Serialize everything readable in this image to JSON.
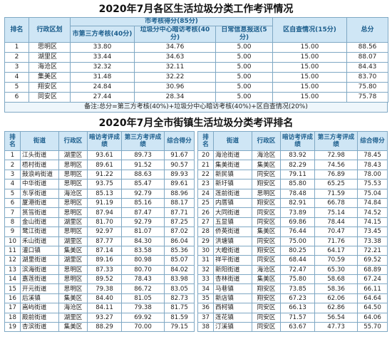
{
  "table1": {
    "title": "2020年7月各区生活垃圾分类工作考评情况",
    "header": {
      "rank": "排名",
      "district": "行政区划",
      "city_score": "市考核得分(85分)",
      "third_party": "市第三方考核(40分)",
      "covert": "垃圾分中心暗访考核(40分)",
      "daily": "日常信息报送(5分)",
      "self_check": "区自查情况(15分)",
      "total": "总分"
    },
    "rows": [
      [
        "1",
        "思明区",
        "33.80",
        "34.76",
        "5.00",
        "15.00",
        "88.56"
      ],
      [
        "2",
        "湖里区",
        "33.44",
        "34.63",
        "5.00",
        "15.00",
        "88.07"
      ],
      [
        "3",
        "海沧区",
        "32.32",
        "32.11",
        "5.00",
        "15.00",
        "84.43"
      ],
      [
        "4",
        "集美区",
        "31.48",
        "32.22",
        "5.00",
        "15.00",
        "83.70"
      ],
      [
        "5",
        "翔安区",
        "24.84",
        "30.96",
        "5.00",
        "15.00",
        "75.80"
      ],
      [
        "6",
        "同安区",
        "27.44",
        "28.34",
        "5.00",
        "15.00",
        "75.78"
      ]
    ],
    "note": "备注:总分=第三方考核(40%)+垃圾分中心暗访考核(40%)+区自查情况(20%)"
  },
  "table2": {
    "title": "2020年7月全市街镇生活垃圾分类考评排名",
    "columns": [
      "排名",
      "街道",
      "行政区",
      "暗访考评成绩",
      "第三方考评成绩",
      "综合得分"
    ],
    "left_rows": [
      [
        "1",
        "江头街道",
        "湖里区",
        "93.61",
        "89.73",
        "91.67"
      ],
      [
        "2",
        "梧村街道",
        "思明区",
        "89.61",
        "91.52",
        "90.57"
      ],
      [
        "3",
        "鼓浪屿街道",
        "思明区",
        "91.22",
        "88.63",
        "89.93"
      ],
      [
        "4",
        "中华街道",
        "思明区",
        "93.75",
        "85.47",
        "89.61"
      ],
      [
        "5",
        "东孚街道",
        "海沧区",
        "85.13",
        "92.79",
        "88.96"
      ],
      [
        "6",
        "厦港街道",
        "思明区",
        "91.19",
        "85.16",
        "88.17"
      ],
      [
        "7",
        "筼筜街道",
        "思明区",
        "87.94",
        "87.47",
        "87.71"
      ],
      [
        "8",
        "金山街道",
        "湖里区",
        "81.70",
        "92.79",
        "87.25"
      ],
      [
        "9",
        "鹭江街道",
        "思明区",
        "92.97",
        "81.07",
        "87.02"
      ],
      [
        "10",
        "禾山街道",
        "湖里区",
        "87.77",
        "84.30",
        "86.04"
      ],
      [
        "11",
        "灌口镇",
        "集美区",
        "87.14",
        "83.58",
        "85.36"
      ],
      [
        "12",
        "湖里街道",
        "湖里区",
        "89.16",
        "80.98",
        "85.07"
      ],
      [
        "13",
        "滨海街道",
        "思明区",
        "87.33",
        "80.70",
        "84.02"
      ],
      [
        "14",
        "嘉莲街道",
        "思明区",
        "89.52",
        "78.43",
        "83.98"
      ],
      [
        "15",
        "开元街道",
        "思明区",
        "79.38",
        "86.72",
        "83.05"
      ],
      [
        "16",
        "后溪镇",
        "集美区",
        "84.40",
        "81.05",
        "82.73"
      ],
      [
        "17",
        "嵩屿街道",
        "海沧区",
        "84.11",
        "79.38",
        "81.75"
      ],
      [
        "18",
        "殿前街道",
        "湖里区",
        "93.27",
        "69.92",
        "81.59"
      ],
      [
        "19",
        "杏滨街道",
        "集美区",
        "88.29",
        "70.00",
        "79.15"
      ]
    ],
    "right_rows": [
      [
        "20",
        "海沧街道",
        "海沧区",
        "83.92",
        "72.98",
        "78.45"
      ],
      [
        "21",
        "集美街道",
        "集美区",
        "82.29",
        "74.56",
        "78.43"
      ],
      [
        "22",
        "新民镇",
        "同安区",
        "79.11",
        "76.89",
        "78.00"
      ],
      [
        "23",
        "新圩镇",
        "翔安区",
        "85.80",
        "65.25",
        "75.53"
      ],
      [
        "24",
        "莲前街道",
        "思明区",
        "78.48",
        "71.59",
        "75.04"
      ],
      [
        "25",
        "内厝镇",
        "翔安区",
        "82.91",
        "66.78",
        "74.84"
      ],
      [
        "26",
        "大同街道",
        "同安区",
        "73.89",
        "75.14",
        "74.52"
      ],
      [
        "27",
        "五显镇",
        "同安区",
        "69.86",
        "78.44",
        "74.15"
      ],
      [
        "28",
        "侨英街道",
        "集美区",
        "76.44",
        "70.47",
        "73.45"
      ],
      [
        "29",
        "洪塘镇",
        "同安区",
        "75.00",
        "71.76",
        "73.38"
      ],
      [
        "30",
        "大嶝街道",
        "翔安区",
        "80.25",
        "64.17",
        "72.21"
      ],
      [
        "31",
        "祥平街道",
        "同安区",
        "68.44",
        "70.59",
        "69.52"
      ],
      [
        "32",
        "新阳街道",
        "海沧区",
        "72.47",
        "65.30",
        "68.89"
      ],
      [
        "33",
        "杏林街道",
        "集美区",
        "75.80",
        "58.68",
        "67.24"
      ],
      [
        "34",
        "马巷镇",
        "翔安区",
        "73.85",
        "58.36",
        "66.11"
      ],
      [
        "35",
        "新店镇",
        "翔安区",
        "67.23",
        "62.06",
        "64.64"
      ],
      [
        "36",
        "西柯镇",
        "同安区",
        "66.13",
        "62.86",
        "64.50"
      ],
      [
        "37",
        "莲花镇",
        "同安区",
        "71.57",
        "56.54",
        "64.06"
      ],
      [
        "38",
        "汀溪镇",
        "同安区",
        "63.67",
        "47.73",
        "55.70"
      ]
    ]
  }
}
